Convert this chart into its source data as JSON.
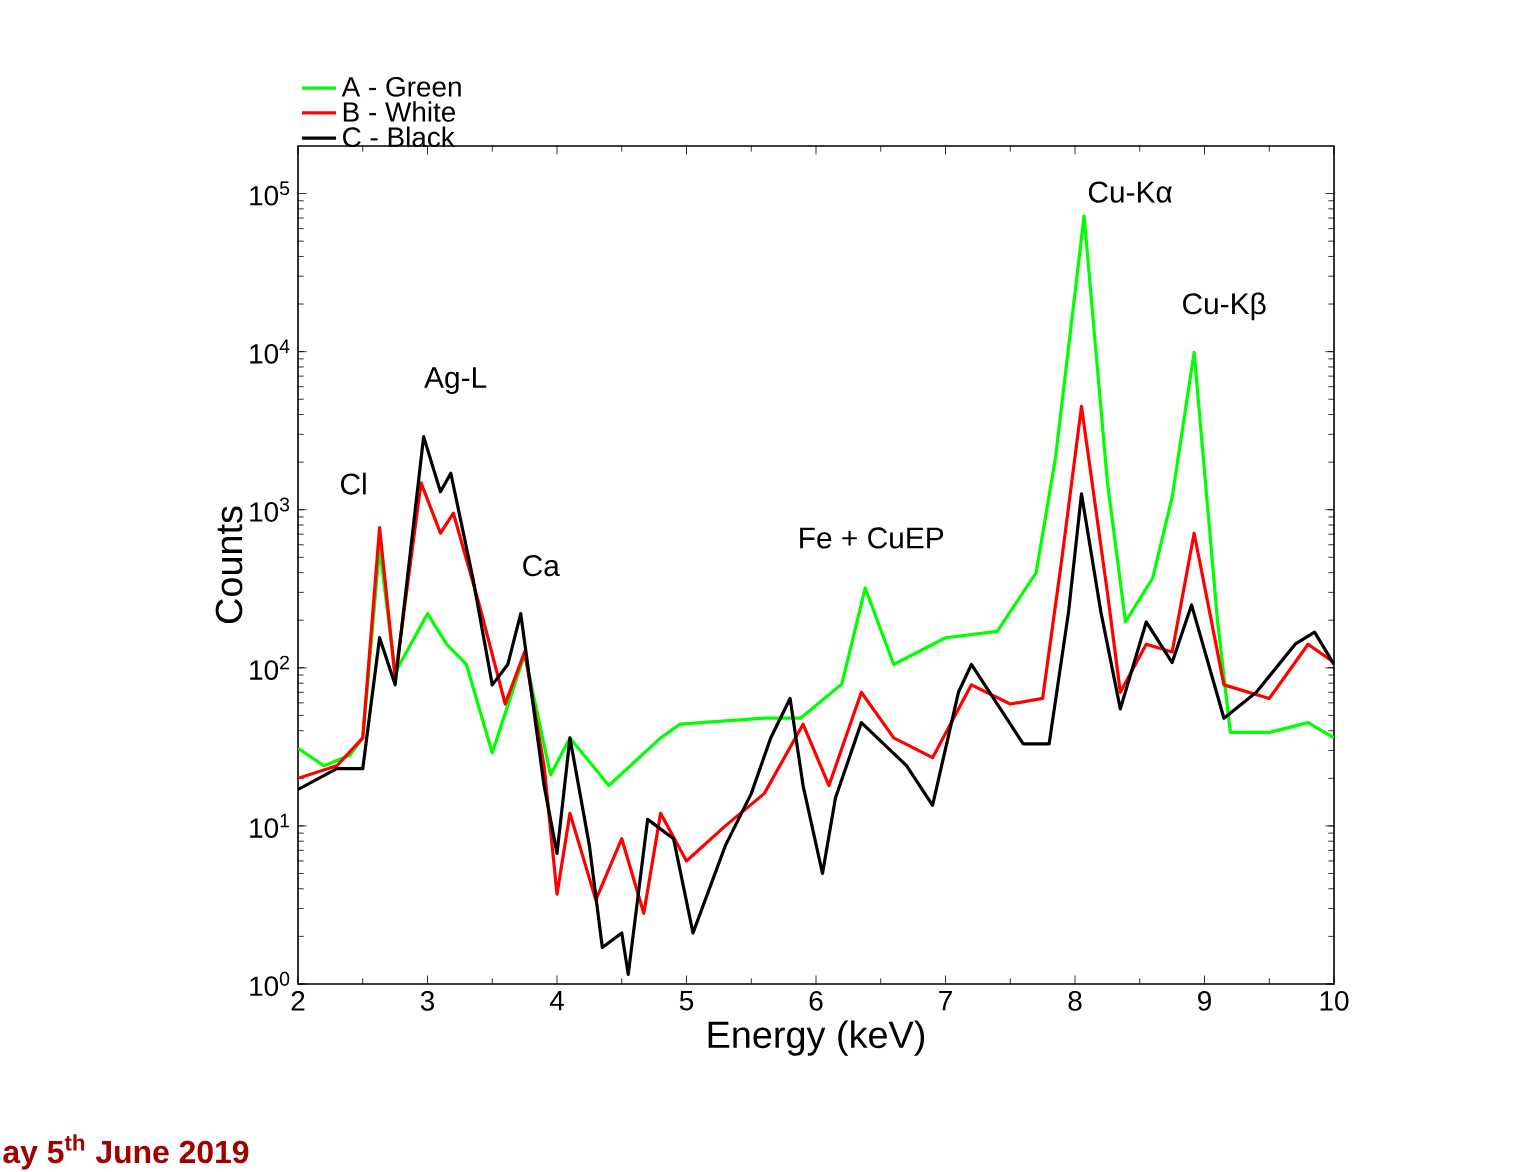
{
  "chart_data": {
    "type": "line",
    "xlabel": "Energy (keV)",
    "ylabel": "Counts",
    "log": "y",
    "legend": "top left",
    "line_style": "solid",
    "xlim": [
      2,
      10
    ],
    "ylim": [
      1,
      200000
    ],
    "xticks": [
      2,
      3,
      4,
      5,
      6,
      7,
      8,
      9,
      10
    ],
    "yticks": [
      {
        "value": 1,
        "label": "10$^{0}$"
      },
      {
        "value": 10,
        "label": "10$^{1}$"
      },
      {
        "value": 100,
        "label": "10$^{2}$"
      },
      {
        "value": 1000,
        "label": "10$^{3}$"
      },
      {
        "value": 10000,
        "label": "10$^{4}$"
      },
      {
        "value": 100000,
        "label": "10$^{5}$"
      }
    ],
    "series": [
      {
        "name": "A - Green",
        "color": "#00ff00",
        "x": [
          2.0,
          2.2,
          2.4,
          2.5,
          2.63,
          2.75,
          3.0,
          3.15,
          3.3,
          3.5,
          3.75,
          3.95,
          4.1,
          4.4,
          4.8,
          4.95,
          5.6,
          5.88,
          6.2,
          6.38,
          6.6,
          7.0,
          7.4,
          7.7,
          7.85,
          8.07,
          8.25,
          8.39,
          8.6,
          8.75,
          8.92,
          9.1,
          9.2,
          9.5,
          9.8,
          10.0
        ],
        "values": [
          31,
          24,
          28,
          36,
          575,
          93,
          220,
          140,
          105,
          29,
          122,
          21,
          36,
          18,
          36,
          44,
          48,
          48,
          79,
          320,
          105,
          155,
          170,
          400,
          2150,
          72000,
          1500,
          195,
          370,
          1200,
          9900,
          200,
          39,
          39,
          45,
          36
        ]
      },
      {
        "name": "B - White",
        "color": "#ff0000",
        "x": [
          2.0,
          2.3,
          2.5,
          2.63,
          2.75,
          2.95,
          3.1,
          3.2,
          3.4,
          3.6,
          3.75,
          3.9,
          4.0,
          4.1,
          4.3,
          4.5,
          4.67,
          4.8,
          5.0,
          5.3,
          5.6,
          5.9,
          6.1,
          6.35,
          6.6,
          6.9,
          7.2,
          7.5,
          7.75,
          7.9,
          8.05,
          8.25,
          8.35,
          8.55,
          8.75,
          8.92,
          9.15,
          9.5,
          9.8,
          10.0
        ],
        "values": [
          20,
          24,
          36,
          770,
          86,
          1480,
          710,
          950,
          250,
          59,
          126,
          24,
          3.7,
          12,
          3.4,
          8.3,
          2.8,
          12,
          6,
          10,
          16,
          44,
          18,
          70,
          36,
          27,
          78,
          59,
          64,
          500,
          4500,
          300,
          70,
          141,
          126,
          710,
          78,
          64,
          141,
          108
        ]
      },
      {
        "name": "C - Black",
        "color": "#000000",
        "x": [
          2.0,
          2.3,
          2.5,
          2.63,
          2.75,
          2.97,
          3.1,
          3.18,
          3.35,
          3.5,
          3.62,
          3.72,
          3.9,
          4.0,
          4.1,
          4.25,
          4.35,
          4.5,
          4.55,
          4.7,
          4.9,
          5.05,
          5.3,
          5.5,
          5.65,
          5.8,
          5.9,
          6.05,
          6.15,
          6.35,
          6.7,
          6.9,
          7.1,
          7.2,
          7.4,
          7.6,
          7.8,
          7.95,
          8.05,
          8.2,
          8.35,
          8.55,
          8.75,
          8.9,
          9.15,
          9.4,
          9.7,
          9.85,
          10.0
        ],
        "values": [
          17,
          23,
          23,
          155,
          78,
          2900,
          1300,
          1700,
          370,
          78,
          105,
          220,
          18,
          6.7,
          36,
          7.5,
          1.7,
          2.1,
          1.15,
          11,
          8.3,
          2.1,
          7.5,
          16,
          36,
          64,
          18,
          5,
          15,
          45,
          24,
          13.5,
          70,
          105,
          59,
          33,
          33,
          225,
          1260,
          225,
          55,
          195,
          108,
          250,
          48,
          70,
          141,
          168,
          105
        ]
      }
    ],
    "annotations": [
      {
        "text": "Cl",
        "x": 2.63,
        "y": 770
      },
      {
        "text": "Ag-L",
        "x": 2.97,
        "y": 2900
      },
      {
        "text": "Ca",
        "x": 3.72,
        "y": 220
      },
      {
        "text": "Fe + CuEP",
        "x": 6.38,
        "y": 320
      },
      {
        "text": "Cu-Kα",
        "x": 8.07,
        "y": 72000
      },
      {
        "text": "Cu-Kβ",
        "x": 8.92,
        "y": 9900
      },
      "ay 5$^{th}$ June 2019"
    ]
  }
}
